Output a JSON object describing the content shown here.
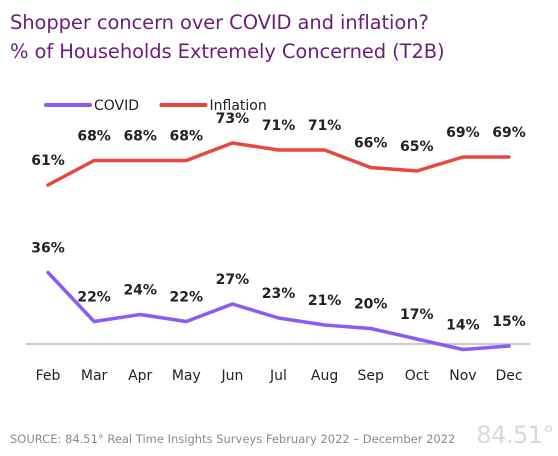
{
  "chart_data": {
    "type": "line",
    "title": "Shopper concern over COVID and inflation?",
    "subtitle": "% of Households Extremely Concerned (T2B)",
    "categories": [
      "Feb",
      "Mar",
      "Apr",
      "May",
      "Jun",
      "Jul",
      "Aug",
      "Sep",
      "Oct",
      "Nov",
      "Dec"
    ],
    "series": [
      {
        "name": "COVID",
        "color": "#8a5cf5",
        "values": [
          36,
          22,
          24,
          22,
          27,
          23,
          21,
          20,
          17,
          14,
          15
        ],
        "labels": [
          "36%",
          "22%",
          "24%",
          "22%",
          "27%",
          "23%",
          "21%",
          "20%",
          "17%",
          "14%",
          "15%"
        ]
      },
      {
        "name": "Inflation",
        "color": "#e8473d",
        "values": [
          61,
          68,
          68,
          68,
          73,
          71,
          71,
          66,
          65,
          69,
          69
        ],
        "labels": [
          "61%",
          "68%",
          "68%",
          "68%",
          "73%",
          "71%",
          "71%",
          "66%",
          "65%",
          "69%",
          "69%"
        ]
      }
    ],
    "legend_position": "top-left",
    "grid": false,
    "y_axis_visible": false
  },
  "footer": {
    "source": "SOURCE:  84.51° Real Time Insights Surveys February 2022 –  December 2022",
    "logo": "84.51°"
  }
}
